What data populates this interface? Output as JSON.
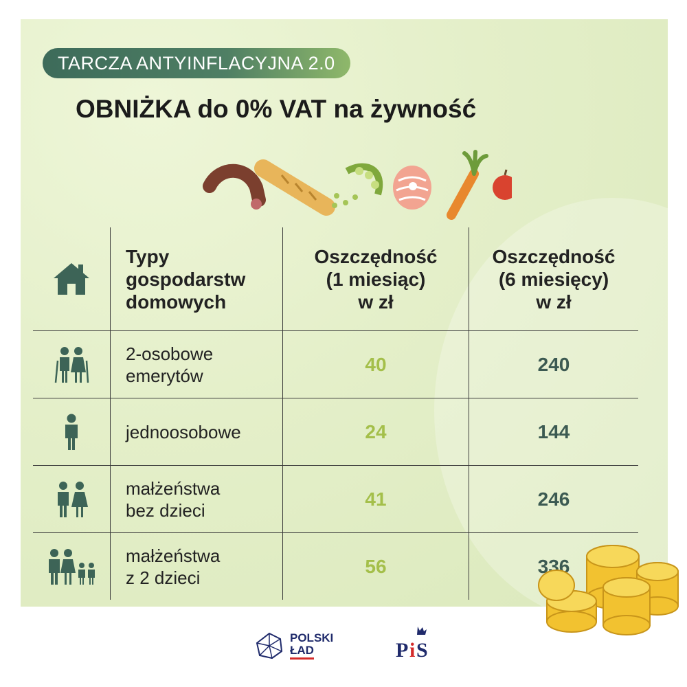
{
  "badge": "TARCZA ANTYINFLACYJNA 2.0",
  "title": "OBNIŻKA do 0% VAT na żywność",
  "table": {
    "header": {
      "type": [
        "Typy",
        "gospodarstw",
        "domowych"
      ],
      "month1": [
        "Oszczędność",
        "(1 miesiąc)",
        "w zł"
      ],
      "month6": [
        "Oszczędność",
        "(6 miesięcy)",
        "w zł"
      ]
    },
    "rows": [
      {
        "icon": "elderly-couple-icon",
        "label": [
          "2-osobowe",
          "emerytów"
        ],
        "month1": "40",
        "month6": "240"
      },
      {
        "icon": "person-icon",
        "label": [
          "jednoosobowe"
        ],
        "month1": "24",
        "month6": "144"
      },
      {
        "icon": "couple-icon",
        "label": [
          "małżeństwa",
          "bez dzieci"
        ],
        "month1": "41",
        "month6": "246"
      },
      {
        "icon": "family-icon",
        "label": [
          "małżeństwa",
          "z 2 dzieci"
        ],
        "month1": "56",
        "month6": "336"
      }
    ]
  },
  "logos": {
    "polski_lad": [
      "POLSKI",
      "ŁAD"
    ],
    "pis": "PiS"
  },
  "colors": {
    "accent_green": "#a4bf4a",
    "dark_teal": "#3c5a52",
    "icon_color": "#3d6457"
  }
}
